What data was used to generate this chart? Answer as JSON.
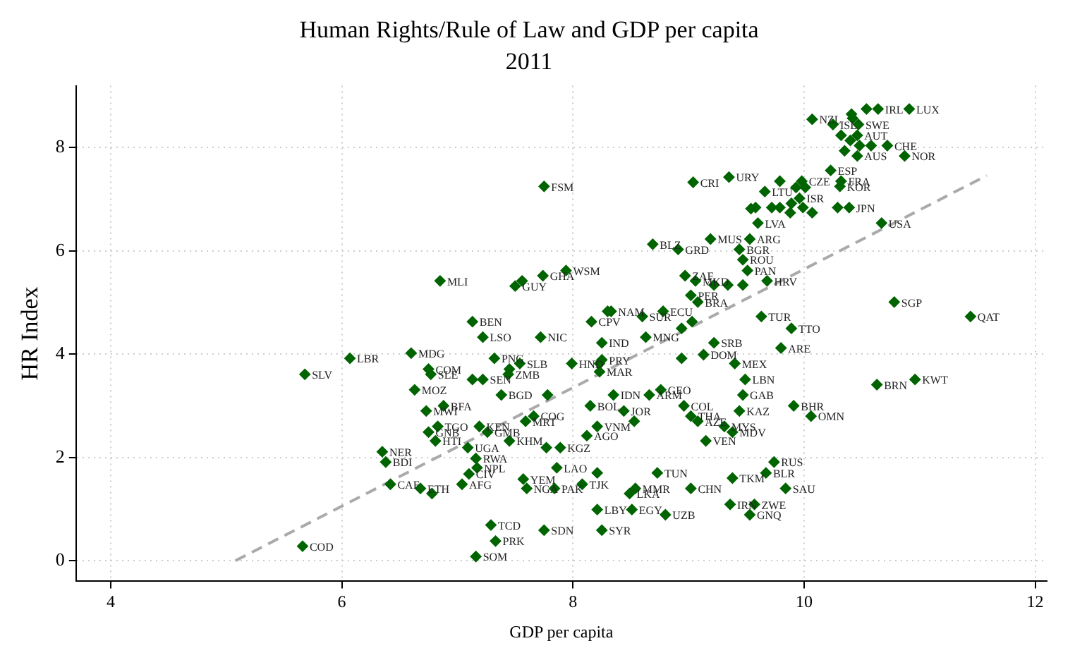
{
  "chart_data": {
    "type": "scatter",
    "title": "Human Rights/Rule of Law and GDP per capita",
    "subtitle": "2011",
    "xlabel": "GDP per capita",
    "ylabel": "HR Index",
    "xlim": [
      3.7,
      12.1
    ],
    "ylim": [
      -0.4,
      9.2
    ],
    "xticks": [
      4,
      6,
      8,
      10,
      12
    ],
    "yticks": [
      0,
      2,
      4,
      6,
      8
    ],
    "grid": true,
    "legend": false,
    "marker": "diamond",
    "series": [
      {
        "color": "#006400",
        "x": [
          10.91,
          10.54,
          10.64,
          10.07,
          10.25,
          10.41,
          10.42,
          10.47,
          10.32,
          10.46,
          10.4,
          10.48,
          10.58,
          10.72,
          10.35,
          10.46,
          10.87,
          10.23,
          10.32,
          10.31,
          9.79,
          9.93,
          9.98,
          10.01,
          9.66,
          9.96,
          9.89,
          9.58,
          9.72,
          9.79,
          9.88,
          9.99,
          10.07,
          10.29,
          10.39,
          10.67,
          9.6,
          9.53,
          9.04,
          9.35,
          7.75,
          8.69,
          8.91,
          9.19,
          9.54,
          9.44,
          9.47,
          9.51,
          7.94,
          7.74,
          6.85,
          7.56,
          7.5,
          7.13,
          7.22,
          7.72,
          8.16,
          8.3,
          8.33,
          8.25,
          6.6,
          6.07,
          5.68,
          6.75,
          6.77,
          7.32,
          7.54,
          7.45,
          7.44,
          7.13,
          7.22,
          6.63,
          7.38,
          7.78,
          6.88,
          6.73,
          7.66,
          7.59,
          7.99,
          8.23,
          6.83,
          6.75,
          7.19,
          7.26,
          6.81,
          7.09,
          7.45,
          7.77,
          7.89,
          8.21,
          8.12,
          6.35,
          6.38,
          7.16,
          7.17,
          7.1,
          6.42,
          7.04,
          6.68,
          6.78,
          7.57,
          7.6,
          7.84,
          7.86,
          8.08,
          8.21,
          8.21,
          7.29,
          7.75,
          8.25,
          7.33,
          7.16,
          5.66,
          9.15,
          9.38,
          9.31,
          9.74,
          9.67,
          9.38,
          8.73,
          8.54,
          8.49,
          9.02,
          9.84,
          8.51,
          8.8,
          9.36,
          9.57,
          9.53,
          8.97,
          9.06,
          9.34,
          9.22,
          9.47,
          9.68,
          9.02,
          9.08,
          8.6,
          8.78,
          9.03,
          8.94,
          10.78,
          11.44,
          9.63,
          9.89,
          8.63,
          9.22,
          9.13,
          9.8,
          8.94,
          9.4,
          9.49,
          9.47,
          10.63,
          10.96,
          8.76,
          8.66,
          9.91,
          10.06,
          8.96,
          9.44,
          9.02,
          9.08,
          8.44,
          8.53,
          8.35,
          8.15,
          8.23,
          8.25
        ],
        "values": [
          8.75,
          8.75,
          8.75,
          8.55,
          8.45,
          8.65,
          8.57,
          8.45,
          8.24,
          8.24,
          8.14,
          8.04,
          8.04,
          8.04,
          7.94,
          7.84,
          7.84,
          7.56,
          7.35,
          7.25,
          7.35,
          7.23,
          7.35,
          7.23,
          7.15,
          7.02,
          6.92,
          6.84,
          6.84,
          6.84,
          6.74,
          6.84,
          6.74,
          6.84,
          6.84,
          6.54,
          6.54,
          6.23,
          7.33,
          7.43,
          7.25,
          6.13,
          6.03,
          6.23,
          6.82,
          6.03,
          5.83,
          5.62,
          5.62,
          5.52,
          5.42,
          5.42,
          5.32,
          4.63,
          4.33,
          4.33,
          4.63,
          4.83,
          4.83,
          4.22,
          4.02,
          3.92,
          3.61,
          3.71,
          3.61,
          3.92,
          3.82,
          3.71,
          3.61,
          3.51,
          3.51,
          3.31,
          3.21,
          3.21,
          3.0,
          2.9,
          2.8,
          2.7,
          3.82,
          3.82,
          2.6,
          2.49,
          2.6,
          2.49,
          2.32,
          2.19,
          2.32,
          2.19,
          2.19,
          2.6,
          2.42,
          2.11,
          1.91,
          1.98,
          1.8,
          1.68,
          1.48,
          1.48,
          1.4,
          1.3,
          1.58,
          1.4,
          1.4,
          1.8,
          1.48,
          1.7,
          0.99,
          0.69,
          0.59,
          0.59,
          0.38,
          0.08,
          0.28,
          2.32,
          2.49,
          2.6,
          1.91,
          1.7,
          1.6,
          1.7,
          1.4,
          1.3,
          1.4,
          1.4,
          0.99,
          0.89,
          1.09,
          1.09,
          0.89,
          5.52,
          5.42,
          5.34,
          5.34,
          5.34,
          5.42,
          5.14,
          5.01,
          4.73,
          4.83,
          4.63,
          4.5,
          5.01,
          4.73,
          4.73,
          4.5,
          4.33,
          4.22,
          3.99,
          4.12,
          3.92,
          3.82,
          3.51,
          3.21,
          3.41,
          3.51,
          3.31,
          3.21,
          3.0,
          2.8,
          3.0,
          2.9,
          2.8,
          2.7,
          2.9,
          2.7,
          3.21,
          3.0,
          3.66,
          3.89
        ],
        "value_labels": [
          "LUX",
          null,
          "IRL",
          "NZL",
          "ISL",
          null,
          null,
          "SWE",
          null,
          "AUT",
          null,
          null,
          null,
          "CHE",
          null,
          "AUS",
          "NOR",
          "ESP",
          "FRA",
          "KOR",
          null,
          null,
          "CZE",
          null,
          "LTU",
          "ISR",
          null,
          null,
          null,
          null,
          null,
          null,
          null,
          null,
          "JPN",
          "USA",
          "LVA",
          "ARG",
          "CRI",
          "URY",
          "FSM",
          "BLZ",
          "GRD",
          "MUS",
          null,
          "BGR",
          "ROU",
          "PAN",
          "WSM",
          "GHA",
          "MLI",
          null,
          "GUY",
          "BEN",
          "LSO",
          "NIC",
          "CPV",
          null,
          "NAM",
          "IND",
          "MDG",
          "LBR",
          "SLV",
          "COM",
          "SLE",
          "PNG",
          "SLB",
          null,
          "ZMB",
          null,
          "SEN",
          "MOZ",
          "BGD",
          null,
          "BFA",
          "MWI",
          "COG",
          "MRT",
          "HND",
          null,
          "TGO",
          "GNB",
          "KEN",
          "GMB",
          "HTI",
          "UGA",
          "KHM",
          null,
          "KGZ",
          "VNM",
          "AGO",
          "NER",
          "BDI",
          "RWA",
          "NPL",
          "CIV",
          "CAF",
          "AFG",
          "ETH",
          null,
          "YEM",
          "NGA",
          "PAK",
          "LAO",
          "TJK",
          null,
          "LBY",
          "TCD",
          "SDN",
          "SYR",
          "PRK",
          "SOM",
          "COD",
          "VEN",
          "MDV",
          "MYS",
          "RUS",
          "BLR",
          "TKM",
          "TUN",
          "MMR",
          "LKA",
          "CHN",
          "SAU",
          "EGY",
          "UZB",
          "IRN",
          "ZWE",
          "GNQ",
          "ZAF",
          "MKD",
          null,
          null,
          null,
          "HRV",
          "PER",
          "BRA",
          "SUR",
          "ECU",
          null,
          null,
          "SGP",
          "QAT",
          "TUR",
          "TTO",
          "MNG",
          "SRB",
          "DOM",
          "ARE",
          null,
          "MEX",
          "LBN",
          "GAB",
          "BRN",
          "KWT",
          "GEO",
          "ARM",
          "BHR",
          "OMN",
          "COL",
          "KAZ",
          "THA",
          "AZE",
          "JOR",
          null,
          "IDN",
          "BOL",
          "MAR",
          "PRY"
        ]
      },
      {
        "type": "line",
        "color": "#aaaaaa",
        "line_style": "dashed",
        "marker": "none",
        "x": [
          5.08,
          11.58
        ],
        "values": [
          0,
          7.46
        ]
      }
    ]
  }
}
